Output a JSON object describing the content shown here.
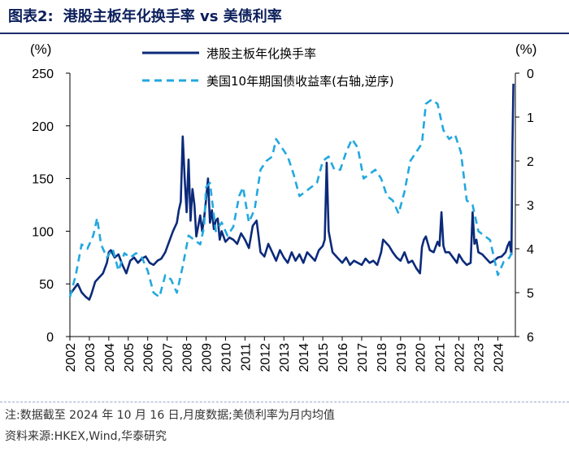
{
  "title": {
    "prefix": "图表2:",
    "text": "港股主板年化换手率 vs 美债利率"
  },
  "footnote": {
    "note": "注:数据截至 2024 年 10 月 16 日,月度数据;美债利率为月内均值",
    "source": "资料来源:HKEX,Wind,华泰研究"
  },
  "colors": {
    "turnover": "#0b2a7a",
    "yield": "#22a8df",
    "title": "#0b1f5b"
  },
  "chart_data": {
    "type": "line",
    "title": "港股主板年化换手率 vs 美债利率",
    "left_axis": {
      "unit": "(%)",
      "ylim": [
        0,
        250
      ],
      "ticks": [
        0,
        50,
        100,
        150,
        200,
        250
      ]
    },
    "right_axis": {
      "unit": "(%)",
      "ylim": [
        0,
        6
      ],
      "inverted": true,
      "ticks": [
        0,
        1,
        2,
        3,
        4,
        5,
        6
      ]
    },
    "x_ticks": [
      "2002",
      "2003",
      "2004",
      "2005",
      "2006",
      "2007",
      "2008",
      "2009",
      "2010",
      "2011",
      "2012",
      "2013",
      "2014",
      "2015",
      "2016",
      "2017",
      "2018",
      "2019",
      "2020",
      "2021",
      "2022",
      "2023",
      "2024"
    ],
    "xlim": [
      2002,
      2024.9
    ],
    "legend_position": "top-center",
    "series": [
      {
        "name": "港股主板年化换手率",
        "axis": "left",
        "style": "solid",
        "x": [
          2002.0,
          2002.2,
          2002.4,
          2002.6,
          2002.8,
          2003.0,
          2003.1,
          2003.3,
          2003.5,
          2003.7,
          2003.9,
          2004.0,
          2004.1,
          2004.3,
          2004.5,
          2004.7,
          2004.9,
          2005.1,
          2005.3,
          2005.5,
          2005.7,
          2005.9,
          2006.1,
          2006.3,
          2006.5,
          2006.7,
          2006.9,
          2007.1,
          2007.3,
          2007.5,
          2007.6,
          2007.7,
          2007.8,
          2007.9,
          2008.0,
          2008.1,
          2008.2,
          2008.3,
          2008.4,
          2008.5,
          2008.7,
          2008.8,
          2008.9,
          2009.0,
          2009.1,
          2009.2,
          2009.3,
          2009.4,
          2009.5,
          2009.6,
          2009.7,
          2009.8,
          2010.0,
          2010.2,
          2010.4,
          2010.6,
          2010.8,
          2011.0,
          2011.2,
          2011.4,
          2011.6,
          2011.8,
          2012.0,
          2012.2,
          2012.4,
          2012.6,
          2012.8,
          2013.0,
          2013.2,
          2013.4,
          2013.6,
          2013.8,
          2014.0,
          2014.2,
          2014.4,
          2014.6,
          2014.8,
          2015.0,
          2015.1,
          2015.2,
          2015.3,
          2015.4,
          2015.5,
          2015.6,
          2015.8,
          2016.0,
          2016.2,
          2016.4,
          2016.6,
          2016.8,
          2017.0,
          2017.2,
          2017.4,
          2017.6,
          2017.8,
          2018.0,
          2018.1,
          2018.2,
          2018.4,
          2018.6,
          2018.8,
          2019.0,
          2019.2,
          2019.4,
          2019.6,
          2019.8,
          2020.0,
          2020.1,
          2020.2,
          2020.3,
          2020.5,
          2020.7,
          2020.9,
          2021.0,
          2021.1,
          2021.2,
          2021.3,
          2021.5,
          2021.7,
          2021.9,
          2022.0,
          2022.2,
          2022.4,
          2022.6,
          2022.7,
          2022.8,
          2022.9,
          2023.0,
          2023.2,
          2023.4,
          2023.6,
          2023.8,
          2024.0,
          2024.2,
          2024.4,
          2024.5,
          2024.6,
          2024.7,
          2024.75,
          2024.8
        ],
        "values": [
          40,
          45,
          50,
          42,
          38,
          35,
          40,
          52,
          56,
          60,
          70,
          80,
          82,
          75,
          78,
          68,
          60,
          72,
          75,
          70,
          74,
          76,
          70,
          68,
          72,
          74,
          80,
          90,
          100,
          108,
          120,
          128,
          190,
          150,
          118,
          168,
          110,
          140,
          125,
          95,
          115,
          100,
          112,
          130,
          150,
          108,
          120,
          102,
          110,
          112,
          92,
          100,
          90,
          94,
          92,
          88,
          98,
          92,
          84,
          105,
          110,
          80,
          76,
          88,
          80,
          72,
          82,
          75,
          70,
          80,
          72,
          78,
          70,
          80,
          76,
          72,
          82,
          86,
          92,
          165,
          100,
          90,
          80,
          78,
          74,
          70,
          75,
          68,
          72,
          70,
          68,
          74,
          70,
          72,
          68,
          80,
          92,
          90,
          86,
          80,
          75,
          72,
          80,
          70,
          72,
          65,
          60,
          85,
          92,
          95,
          82,
          80,
          90,
          86,
          118,
          86,
          80,
          80,
          75,
          70,
          78,
          72,
          68,
          70,
          118,
          88,
          92,
          80,
          78,
          74,
          70,
          72,
          75,
          76,
          80,
          86,
          90,
          78,
          180,
          240
        ]
      },
      {
        "name": "美国10年期国债收益率(右轴,逆序)",
        "axis": "right",
        "style": "dashed",
        "x": [
          2002.0,
          2002.3,
          2002.6,
          2002.9,
          2003.2,
          2003.4,
          2003.6,
          2003.9,
          2004.2,
          2004.5,
          2004.8,
          2005.1,
          2005.4,
          2005.7,
          2006.0,
          2006.3,
          2006.6,
          2006.9,
          2007.2,
          2007.5,
          2007.8,
          2008.1,
          2008.4,
          2008.7,
          2008.9,
          2009.0,
          2009.2,
          2009.5,
          2009.8,
          2010.1,
          2010.4,
          2010.7,
          2010.9,
          2011.2,
          2011.5,
          2011.8,
          2012.1,
          2012.4,
          2012.6,
          2012.9,
          2013.2,
          2013.5,
          2013.8,
          2014.1,
          2014.4,
          2014.7,
          2015.0,
          2015.3,
          2015.6,
          2015.9,
          2016.2,
          2016.5,
          2016.8,
          2017.1,
          2017.4,
          2017.7,
          2018.0,
          2018.3,
          2018.6,
          2018.9,
          2019.2,
          2019.5,
          2019.8,
          2020.1,
          2020.3,
          2020.6,
          2020.9,
          2021.2,
          2021.5,
          2021.8,
          2022.1,
          2022.4,
          2022.7,
          2023.0,
          2023.3,
          2023.6,
          2023.8,
          2024.0,
          2024.3,
          2024.6,
          2024.8
        ],
        "values": [
          5.1,
          4.6,
          3.9,
          4.0,
          3.7,
          3.3,
          3.9,
          4.2,
          4.0,
          4.5,
          4.1,
          4.2,
          4.1,
          4.2,
          4.5,
          5.0,
          5.1,
          4.6,
          4.7,
          5.0,
          4.4,
          3.7,
          3.8,
          3.9,
          3.5,
          2.6,
          2.5,
          3.6,
          3.4,
          3.7,
          3.5,
          2.8,
          2.6,
          3.4,
          3.1,
          2.2,
          2.0,
          1.9,
          1.5,
          1.7,
          1.9,
          2.3,
          2.8,
          2.7,
          2.6,
          2.5,
          2.0,
          1.9,
          2.2,
          2.2,
          1.8,
          1.5,
          1.7,
          2.4,
          2.3,
          2.2,
          2.4,
          2.8,
          2.9,
          3.2,
          2.7,
          2.0,
          1.8,
          1.6,
          0.7,
          0.6,
          0.7,
          1.3,
          1.5,
          1.4,
          1.8,
          2.9,
          3.0,
          3.6,
          3.7,
          3.8,
          4.2,
          4.6,
          4.3,
          4.2,
          4.0
        ]
      }
    ]
  }
}
